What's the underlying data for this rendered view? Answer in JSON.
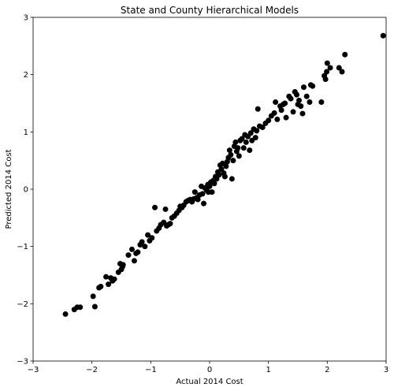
{
  "chart_data": {
    "type": "scatter",
    "title": "State and County Hierarchical Models",
    "xlabel": "Actual 2014 Cost",
    "ylabel": "Predicted 2014 Cost",
    "xlim": [
      -3,
      3
    ],
    "ylim": [
      -3,
      3
    ],
    "xticks": [
      -3,
      -2,
      -1,
      0,
      1,
      2,
      3
    ],
    "yticks": [
      -3,
      -2,
      -1,
      0,
      1,
      2,
      3
    ],
    "grid": false,
    "marker_color": "#000000",
    "points": [
      [
        -2.45,
        -2.18
      ],
      [
        -2.3,
        -2.1
      ],
      [
        -2.25,
        -2.06
      ],
      [
        -2.2,
        -2.06
      ],
      [
        -1.98,
        -1.87
      ],
      [
        -1.95,
        -2.05
      ],
      [
        -1.88,
        -1.72
      ],
      [
        -1.85,
        -1.7
      ],
      [
        -1.76,
        -1.53
      ],
      [
        -1.72,
        -1.66
      ],
      [
        -1.68,
        -1.55
      ],
      [
        -1.65,
        -1.6
      ],
      [
        -1.62,
        -1.57
      ],
      [
        -1.55,
        -1.45
      ],
      [
        -1.52,
        -1.3
      ],
      [
        -1.5,
        -1.4
      ],
      [
        -1.48,
        -1.35
      ],
      [
        -1.47,
        -1.32
      ],
      [
        -1.38,
        -1.15
      ],
      [
        -1.32,
        -1.05
      ],
      [
        -1.28,
        -1.25
      ],
      [
        -1.25,
        -1.12
      ],
      [
        -1.22,
        -1.1
      ],
      [
        -1.18,
        -0.97
      ],
      [
        -1.15,
        -0.92
      ],
      [
        -1.1,
        -1.0
      ],
      [
        -1.05,
        -0.8
      ],
      [
        -1.02,
        -0.9
      ],
      [
        -0.98,
        -0.85
      ],
      [
        -0.93,
        -0.32
      ],
      [
        -0.9,
        -0.73
      ],
      [
        -0.86,
        -0.68
      ],
      [
        -0.83,
        -0.62
      ],
      [
        -0.78,
        -0.58
      ],
      [
        -0.75,
        -0.35
      ],
      [
        -0.73,
        -0.64
      ],
      [
        -0.7,
        -0.62
      ],
      [
        -0.67,
        -0.6
      ],
      [
        -0.64,
        -0.5
      ],
      [
        -0.6,
        -0.47
      ],
      [
        -0.56,
        -0.42
      ],
      [
        -0.52,
        -0.37
      ],
      [
        -0.5,
        -0.3
      ],
      [
        -0.47,
        -0.32
      ],
      [
        -0.44,
        -0.28
      ],
      [
        -0.4,
        -0.22
      ],
      [
        -0.37,
        -0.2
      ],
      [
        -0.33,
        -0.18
      ],
      [
        -0.3,
        -0.22
      ],
      [
        -0.27,
        -0.17
      ],
      [
        -0.25,
        -0.05
      ],
      [
        -0.22,
        -0.15
      ],
      [
        -0.2,
        -0.18
      ],
      [
        -0.17,
        -0.1
      ],
      [
        -0.14,
        0.05
      ],
      [
        -0.12,
        -0.08
      ],
      [
        -0.1,
        -0.25
      ],
      [
        -0.08,
        0.02
      ],
      [
        -0.05,
        -0.02
      ],
      [
        -0.03,
        0.08
      ],
      [
        -0.02,
        -0.05
      ],
      [
        0.0,
        0.05
      ],
      [
        0.02,
        0.12
      ],
      [
        0.04,
        -0.05
      ],
      [
        0.06,
        0.15
      ],
      [
        0.08,
        0.1
      ],
      [
        0.1,
        0.22
      ],
      [
        0.12,
        0.18
      ],
      [
        0.14,
        0.3
      ],
      [
        0.16,
        0.25
      ],
      [
        0.18,
        0.42
      ],
      [
        0.2,
        0.35
      ],
      [
        0.22,
        0.45
      ],
      [
        0.24,
        0.28
      ],
      [
        0.26,
        0.22
      ],
      [
        0.28,
        0.4
      ],
      [
        0.3,
        0.48
      ],
      [
        0.32,
        0.55
      ],
      [
        0.34,
        0.68
      ],
      [
        0.36,
        0.6
      ],
      [
        0.38,
        0.18
      ],
      [
        0.4,
        0.5
      ],
      [
        0.42,
        0.75
      ],
      [
        0.44,
        0.82
      ],
      [
        0.46,
        0.66
      ],
      [
        0.48,
        0.72
      ],
      [
        0.5,
        0.58
      ],
      [
        0.52,
        0.85
      ],
      [
        0.55,
        0.88
      ],
      [
        0.58,
        0.72
      ],
      [
        0.6,
        0.95
      ],
      [
        0.62,
        0.82
      ],
      [
        0.65,
        0.92
      ],
      [
        0.68,
        0.68
      ],
      [
        0.7,
        0.98
      ],
      [
        0.72,
        0.85
      ],
      [
        0.75,
        1.05
      ],
      [
        0.78,
        0.9
      ],
      [
        0.8,
        1.02
      ],
      [
        0.82,
        1.4
      ],
      [
        0.85,
        1.1
      ],
      [
        0.9,
        1.08
      ],
      [
        0.95,
        1.15
      ],
      [
        1.0,
        1.2
      ],
      [
        1.05,
        1.28
      ],
      [
        1.1,
        1.33
      ],
      [
        1.12,
        1.52
      ],
      [
        1.15,
        1.22
      ],
      [
        1.2,
        1.45
      ],
      [
        1.22,
        1.38
      ],
      [
        1.25,
        1.48
      ],
      [
        1.28,
        1.5
      ],
      [
        1.3,
        1.25
      ],
      [
        1.35,
        1.62
      ],
      [
        1.38,
        1.58
      ],
      [
        1.42,
        1.35
      ],
      [
        1.45,
        1.7
      ],
      [
        1.48,
        1.65
      ],
      [
        1.5,
        1.48
      ],
      [
        1.52,
        1.55
      ],
      [
        1.55,
        1.45
      ],
      [
        1.58,
        1.32
      ],
      [
        1.6,
        1.78
      ],
      [
        1.65,
        1.62
      ],
      [
        1.7,
        1.52
      ],
      [
        1.72,
        1.82
      ],
      [
        1.75,
        1.8
      ],
      [
        1.9,
        1.52
      ],
      [
        1.95,
        1.98
      ],
      [
        1.97,
        1.92
      ],
      [
        1.99,
        2.05
      ],
      [
        2.0,
        2.2
      ],
      [
        2.05,
        2.12
      ],
      [
        2.2,
        2.12
      ],
      [
        2.25,
        2.05
      ],
      [
        2.3,
        2.35
      ],
      [
        2.95,
        2.68
      ]
    ]
  }
}
